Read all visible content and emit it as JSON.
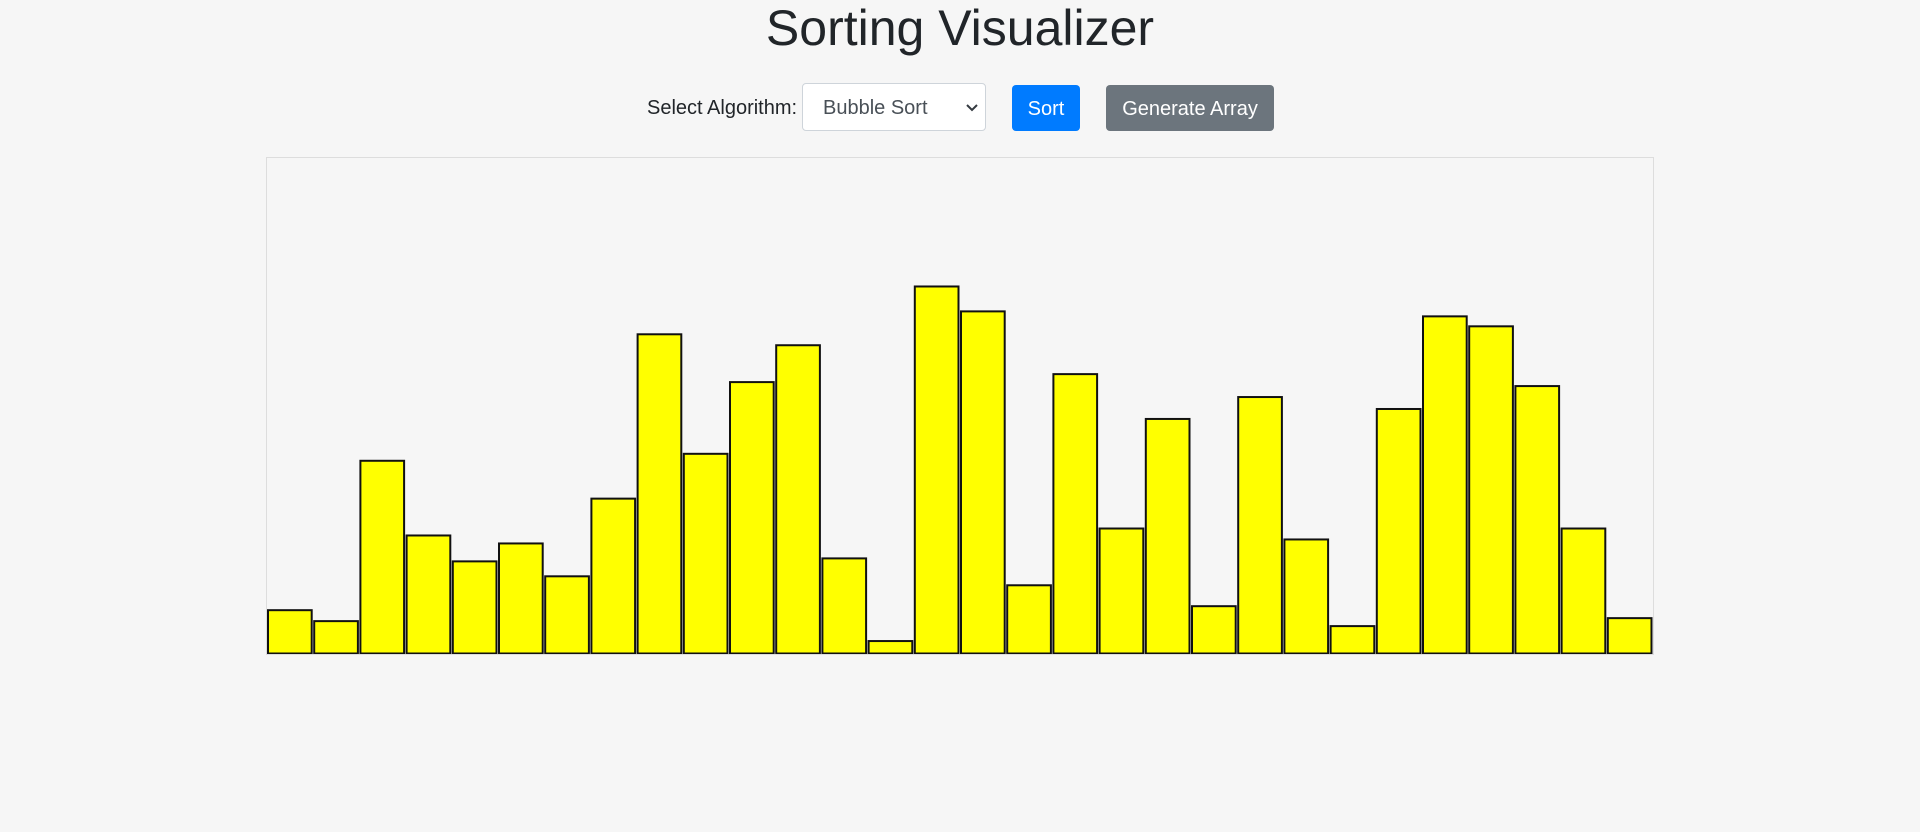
{
  "page": {
    "title": "Sorting Visualizer"
  },
  "controls": {
    "algorithm_label": "Select Algorithm:",
    "algorithm_selected": "Bubble Sort",
    "sort_label": "Sort",
    "generate_label": "Generate Array"
  },
  "colors": {
    "bar_fill": "#ffff00",
    "bar_stroke": "#111111",
    "sort_button": "#007bff",
    "generate_button": "#6c757d"
  },
  "icons": {
    "select_arrow": "chevron-down-icon"
  },
  "chart_data": {
    "type": "bar",
    "values": [
      44,
      33,
      194,
      119,
      93,
      111,
      78,
      156,
      321,
      201,
      273,
      310,
      96,
      13,
      369,
      344,
      69,
      281,
      126,
      236,
      48,
      258,
      115,
      28,
      246,
      339,
      329,
      269,
      126,
      36
    ],
    "ylim": [
      0,
      498
    ],
    "grid": false,
    "legend": "none"
  }
}
